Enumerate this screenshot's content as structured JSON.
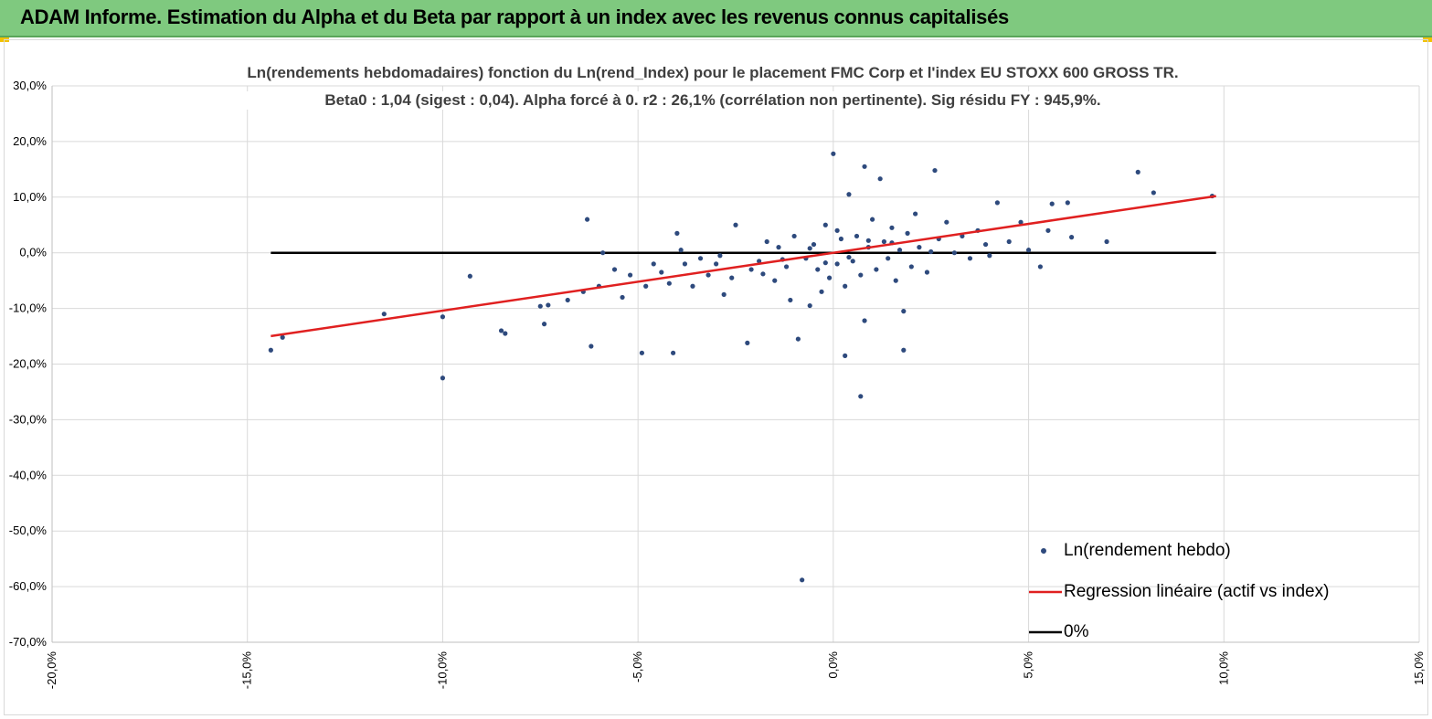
{
  "header": {
    "title": "ADAM Informe. Estimation du Alpha et du Beta par rapport à un index avec les revenus connus capitalisés"
  },
  "chart_data": {
    "type": "scatter",
    "title_line1": "Ln(rendements hebdomadaires) fonction du Ln(rend_Index)  pour le placement FMC Corp et l'index EU STOXX 600 GROSS TR.",
    "title_line2": "Beta0 : 1,04 (sigest : 0,04). Alpha forcé à 0. r2 : 26,1% (corrélation non pertinente). Sig résidu FY : 945,9%.",
    "xlim": [
      -20,
      15
    ],
    "ylim": [
      -70,
      30
    ],
    "x_ticks": [
      -20,
      -15,
      -10,
      -5,
      0,
      5,
      10,
      15
    ],
    "y_ticks": [
      30,
      20,
      10,
      0,
      -10,
      -20,
      -30,
      -40,
      -50,
      -60,
      -70
    ],
    "x_tick_labels": [
      "-20,0%",
      "-15,0%",
      "-10,0%",
      "-5,0%",
      "0,0%",
      "5,0%",
      "10,0%",
      "15,0%"
    ],
    "y_tick_labels": [
      "30,0%",
      "20,0%",
      "10,0%",
      "0,0%",
      "-10,0%",
      "-20,0%",
      "-30,0%",
      "-40,0%",
      "-50,0%",
      "-60,0%",
      "-70,0%"
    ],
    "colors": {
      "points": "#2e4a7d",
      "regression": "#e02020",
      "zero": "#000000",
      "grid": "#d9d9d9"
    },
    "legend": [
      {
        "label": "Ln(rendement hebdo)",
        "kind": "marker"
      },
      {
        "label": "Regression linéaire (actif vs index)",
        "kind": "red-line"
      },
      {
        "label": "0%",
        "kind": "black-line"
      }
    ],
    "regression_line": {
      "slope": 1.04,
      "intercept": 0,
      "x": [
        -14.4,
        9.8
      ]
    },
    "zero_line": {
      "y": 0,
      "x": [
        -14.4,
        9.8
      ]
    },
    "series": [
      {
        "name": "Ln(rendement hebdo)",
        "points": [
          [
            -14.4,
            -17.5
          ],
          [
            -14.1,
            -15.2
          ],
          [
            -11.5,
            -11.0
          ],
          [
            -10.0,
            -22.5
          ],
          [
            -10.0,
            -11.5
          ],
          [
            -9.3,
            -4.2
          ],
          [
            -8.5,
            -14.0
          ],
          [
            -8.4,
            -14.5
          ],
          [
            -7.5,
            -9.6
          ],
          [
            -7.4,
            -12.8
          ],
          [
            -7.3,
            -9.4
          ],
          [
            -6.8,
            -8.5
          ],
          [
            -6.4,
            -7.0
          ],
          [
            -6.3,
            6.0
          ],
          [
            -6.2,
            -16.8
          ],
          [
            -6.0,
            -6.0
          ],
          [
            -5.9,
            0.0
          ],
          [
            -5.6,
            -3.0
          ],
          [
            -5.4,
            -8.0
          ],
          [
            -5.2,
            -4.0
          ],
          [
            -4.9,
            -18.0
          ],
          [
            -4.8,
            -6.0
          ],
          [
            -4.6,
            -2.0
          ],
          [
            -4.4,
            -3.5
          ],
          [
            -4.2,
            -5.5
          ],
          [
            -4.1,
            -18.0
          ],
          [
            -4.0,
            3.5
          ],
          [
            -3.8,
            -2.0
          ],
          [
            -3.6,
            -6.0
          ],
          [
            -3.4,
            -1.0
          ],
          [
            -3.2,
            -4.0
          ],
          [
            -3.0,
            -2.0
          ],
          [
            -2.8,
            -7.5
          ],
          [
            -2.6,
            -4.5
          ],
          [
            -2.5,
            5.0
          ],
          [
            -2.2,
            -16.2
          ],
          [
            -2.1,
            -3.0
          ],
          [
            -1.9,
            -1.5
          ],
          [
            -1.7,
            2.0
          ],
          [
            -1.5,
            -5.0
          ],
          [
            -1.4,
            1.0
          ],
          [
            -1.2,
            -2.5
          ],
          [
            -1.1,
            -8.5
          ],
          [
            -1.0,
            3.0
          ],
          [
            -0.9,
            -15.5
          ],
          [
            -0.8,
            -58.8
          ],
          [
            -0.7,
            -1.0
          ],
          [
            -0.6,
            -9.5
          ],
          [
            -0.5,
            1.5
          ],
          [
            -0.4,
            -3.0
          ],
          [
            -0.3,
            -7.0
          ],
          [
            -0.2,
            5.0
          ],
          [
            -0.1,
            -4.5
          ],
          [
            0.0,
            17.8
          ],
          [
            0.1,
            -2.0
          ],
          [
            0.2,
            2.5
          ],
          [
            0.3,
            -6.0
          ],
          [
            0.3,
            -18.5
          ],
          [
            0.4,
            10.5
          ],
          [
            0.5,
            -1.5
          ],
          [
            0.6,
            3.0
          ],
          [
            0.7,
            -4.0
          ],
          [
            0.7,
            -25.8
          ],
          [
            0.8,
            15.5
          ],
          [
            0.8,
            -12.2
          ],
          [
            0.9,
            1.0
          ],
          [
            1.0,
            6.0
          ],
          [
            1.1,
            -3.0
          ],
          [
            1.2,
            13.3
          ],
          [
            1.3,
            2.0
          ],
          [
            1.4,
            -1.0
          ],
          [
            1.5,
            4.5
          ],
          [
            1.6,
            -5.0
          ],
          [
            1.7,
            0.5
          ],
          [
            1.8,
            -17.5
          ],
          [
            1.8,
            -10.5
          ],
          [
            1.9,
            3.5
          ],
          [
            2.0,
            -2.5
          ],
          [
            2.1,
            7.0
          ],
          [
            2.2,
            1.0
          ],
          [
            2.4,
            -3.5
          ],
          [
            2.6,
            14.8
          ],
          [
            2.7,
            2.5
          ],
          [
            2.9,
            5.5
          ],
          [
            3.1,
            0.0
          ],
          [
            3.3,
            3.0
          ],
          [
            3.5,
            -1.0
          ],
          [
            3.7,
            4.0
          ],
          [
            3.9,
            1.5
          ],
          [
            4.0,
            -0.5
          ],
          [
            4.2,
            9.0
          ],
          [
            4.5,
            2.0
          ],
          [
            4.8,
            5.5
          ],
          [
            5.0,
            0.5
          ],
          [
            5.3,
            -2.5
          ],
          [
            5.5,
            4.0
          ],
          [
            5.6,
            8.8
          ],
          [
            6.0,
            9.0
          ],
          [
            6.1,
            2.8
          ],
          [
            7.0,
            2.0
          ],
          [
            7.8,
            14.5
          ],
          [
            8.2,
            10.8
          ],
          [
            9.7,
            10.2
          ],
          [
            -3.9,
            0.5
          ],
          [
            -2.9,
            -0.5
          ],
          [
            -1.8,
            -3.8
          ],
          [
            -0.6,
            0.8
          ],
          [
            0.4,
            -0.8
          ],
          [
            1.5,
            1.8
          ],
          [
            2.5,
            0.2
          ],
          [
            -1.3,
            -1.2
          ],
          [
            0.9,
            2.2
          ],
          [
            -0.2,
            -1.8
          ],
          [
            0.1,
            4.0
          ]
        ]
      }
    ]
  }
}
